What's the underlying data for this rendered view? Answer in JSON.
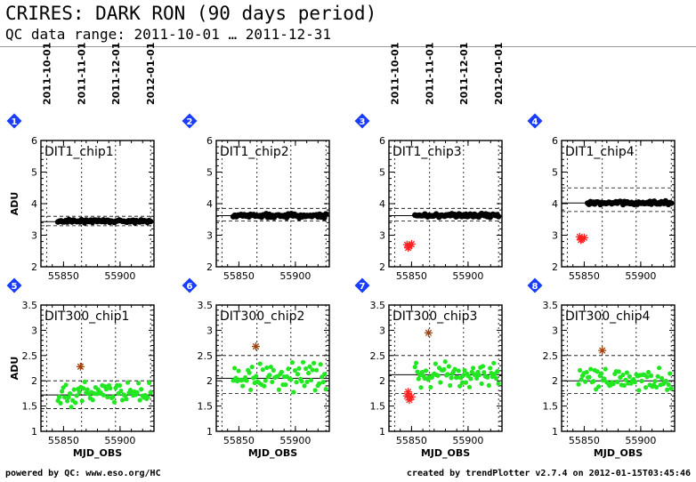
{
  "header": {
    "title": "CRIRES: DARK RON (90 days period)",
    "subtitle": "QC data range: 2011-10-01 … 2011-12-31"
  },
  "footer": {
    "left": "powered by QC: www.eso.org/HC",
    "right": "created by trendPlotter v2.7.4 on 2012-01-15T03:45:46"
  },
  "colors": {
    "black_points": "#000000",
    "green_points": "#22e622",
    "outlier_red": "#ff2020",
    "outlier_brown": "#a0400a",
    "badge": "#1a3cff"
  },
  "date_ticks": {
    "labels": [
      "2011-10-01",
      "2011-11-01",
      "2011-12-01",
      "2012-01-01"
    ],
    "mjd": [
      55835,
      55866,
      55896,
      55927
    ]
  },
  "chart_data": [
    {
      "type": "scatter",
      "badge": "1",
      "label": "DIT1_chip1",
      "xlim": [
        55830,
        55930
      ],
      "ylim": [
        2,
        6
      ],
      "yticks": [
        "2",
        "3",
        "4",
        "5",
        "6"
      ],
      "xticks": [
        "55850",
        "55900"
      ],
      "ylabel": "ADU",
      "xlabel": "",
      "x_range": [
        55845,
        55927
      ],
      "trend_y": 3.43,
      "band": [
        3.3,
        3.6
      ],
      "points": [
        3.45,
        3.42,
        3.47,
        3.44,
        3.41,
        3.46,
        3.43,
        3.48
      ],
      "point_color": "black",
      "outliers": []
    },
    {
      "type": "scatter",
      "badge": "2",
      "label": "DIT1_chip2",
      "xlim": [
        55830,
        55930
      ],
      "ylim": [
        2,
        6
      ],
      "yticks": [
        "2",
        "3",
        "4",
        "5",
        "6"
      ],
      "xticks": [
        "55850",
        "55900"
      ],
      "ylabel": "",
      "xlabel": "",
      "x_range": [
        55845,
        55927
      ],
      "trend_y": 3.62,
      "band": [
        3.45,
        3.85
      ],
      "points": [
        3.6,
        3.63,
        3.58,
        3.65,
        3.61,
        3.66,
        3.59,
        3.64
      ],
      "point_color": "black",
      "outliers": []
    },
    {
      "type": "scatter",
      "badge": "3",
      "label": "DIT1_chip3",
      "xlim": [
        55830,
        55930
      ],
      "ylim": [
        2,
        6
      ],
      "yticks": [
        "2",
        "3",
        "4",
        "5",
        "6"
      ],
      "xticks": [
        "55850",
        "55900"
      ],
      "ylabel": "",
      "xlabel": "",
      "x_range": [
        55853,
        55927
      ],
      "trend_y": 3.62,
      "band": [
        3.45,
        3.85
      ],
      "points": [
        3.63,
        3.6,
        3.65,
        3.61,
        3.64,
        3.59,
        3.62,
        3.66
      ],
      "point_color": "black",
      "outliers": [
        {
          "x": 55846,
          "y": 2.7,
          "color": "red"
        },
        {
          "x": 55848,
          "y": 2.65,
          "color": "red"
        },
        {
          "x": 55850,
          "y": 2.72,
          "color": "red"
        },
        {
          "x": 55847,
          "y": 2.6,
          "color": "red"
        }
      ]
    },
    {
      "type": "scatter",
      "badge": "4",
      "label": "DIT1_chip4",
      "xlim": [
        55830,
        55930
      ],
      "ylim": [
        2,
        6
      ],
      "yticks": [
        "2",
        "3",
        "4",
        "5",
        "6"
      ],
      "xticks": [
        "55850",
        "55900"
      ],
      "ylabel": "",
      "xlabel": "",
      "x_range": [
        55853,
        55927
      ],
      "trend_y": 4.02,
      "band": [
        3.75,
        4.5
      ],
      "points": [
        4.02,
        4.0,
        4.05,
        4.01,
        4.04,
        3.99,
        4.03,
        4.06
      ],
      "point_color": "black",
      "outliers": [
        {
          "x": 55846,
          "y": 2.95,
          "color": "red"
        },
        {
          "x": 55848,
          "y": 2.88,
          "color": "red"
        },
        {
          "x": 55850,
          "y": 2.92,
          "color": "red"
        },
        {
          "x": 55847,
          "y": 2.85,
          "color": "red"
        }
      ]
    },
    {
      "type": "scatter",
      "badge": "5",
      "label": "DIT300_chip1",
      "xlim": [
        55830,
        55930
      ],
      "ylim": [
        1,
        3.5
      ],
      "yticks": [
        "1",
        "1.5",
        "2",
        "2.5",
        "3",
        "3.5"
      ],
      "xticks": [
        "55850",
        "55900"
      ],
      "ylabel": "ADU",
      "xlabel": "MJD_OBS",
      "x_range": [
        55845,
        55927
      ],
      "trend_y": 1.72,
      "band": [
        1.45,
        2.0
      ],
      "points": [
        1.7,
        1.8,
        1.62,
        1.75,
        1.85,
        1.68,
        1.78,
        1.72
      ],
      "point_color": "green",
      "outliers": [
        {
          "x": 55865,
          "y": 2.28,
          "color": "brown"
        }
      ]
    },
    {
      "type": "scatter",
      "badge": "6",
      "label": "DIT300_chip2",
      "xlim": [
        55830,
        55930
      ],
      "ylim": [
        1,
        3.5
      ],
      "yticks": [
        "1",
        "1.5",
        "2",
        "2.5",
        "3",
        "3.5"
      ],
      "xticks": [
        "55850",
        "55900"
      ],
      "ylabel": "",
      "xlabel": "MJD_OBS",
      "x_range": [
        55845,
        55927
      ],
      "trend_y": 2.05,
      "band": [
        1.75,
        2.5
      ],
      "points": [
        2.05,
        2.2,
        1.95,
        2.1,
        2.25,
        1.9,
        2.15,
        2.0
      ],
      "point_color": "green",
      "outliers": [
        {
          "x": 55865,
          "y": 2.68,
          "color": "brown"
        }
      ]
    },
    {
      "type": "scatter",
      "badge": "7",
      "label": "DIT300_chip3",
      "xlim": [
        55830,
        55930
      ],
      "ylim": [
        1,
        3.5
      ],
      "yticks": [
        "1",
        "1.5",
        "2",
        "2.5",
        "3",
        "3.5"
      ],
      "xticks": [
        "55850",
        "55900"
      ],
      "ylabel": "",
      "xlabel": "MJD_OBS",
      "x_range": [
        55853,
        55927
      ],
      "trend_y": 2.12,
      "band": [
        1.75,
        2.5
      ],
      "points": [
        2.15,
        2.25,
        2.05,
        2.1,
        2.2,
        2.0,
        2.18,
        2.08
      ],
      "point_color": "green",
      "outliers": [
        {
          "x": 55846,
          "y": 1.7,
          "color": "red"
        },
        {
          "x": 55848,
          "y": 1.62,
          "color": "red"
        },
        {
          "x": 55850,
          "y": 1.68,
          "color": "red"
        },
        {
          "x": 55847,
          "y": 1.78,
          "color": "red"
        },
        {
          "x": 55865,
          "y": 2.95,
          "color": "brown"
        }
      ]
    },
    {
      "type": "scatter",
      "badge": "8",
      "label": "DIT300_chip4",
      "xlim": [
        55830,
        55930
      ],
      "ylim": [
        1,
        3.5
      ],
      "yticks": [
        "1",
        "1.5",
        "2",
        "2.5",
        "3",
        "3.5"
      ],
      "xticks": [
        "55850",
        "55900"
      ],
      "ylabel": "",
      "xlabel": "MJD_OBS",
      "x_range": [
        55845,
        55927
      ],
      "trend_y": 2.0,
      "band": [
        1.75,
        2.5
      ],
      "points": [
        2.0,
        2.1,
        1.92,
        2.05,
        2.15,
        1.88,
        2.08,
        1.98
      ],
      "point_color": "green",
      "outliers": [
        {
          "x": 55866,
          "y": 2.6,
          "color": "brown"
        }
      ]
    }
  ]
}
